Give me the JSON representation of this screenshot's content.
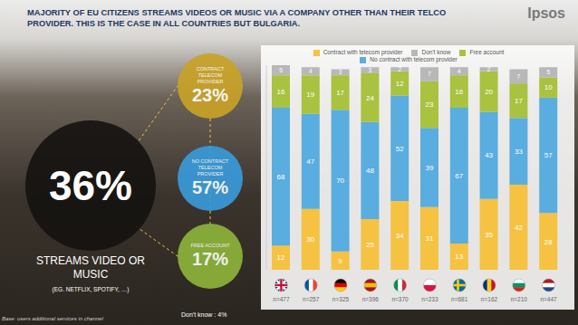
{
  "logo": "Ipsos",
  "base_note": "Base: users additional services in channel",
  "summary": {
    "value": 36,
    "value_label": "36%",
    "label": "STREAMS VIDEO OR MUSIC",
    "sublabel": "(EG. NETFLIX, SPOTIFY, …)",
    "breakdown": [
      {
        "label": "CONTRACT TELECOM PROVIDER",
        "value": 23,
        "value_label": "23%",
        "color": "#c9a227"
      },
      {
        "label": "NO CONTRACT TELECOM PROVIDER",
        "value": 57,
        "value_label": "57%",
        "color": "#3a9ad9"
      },
      {
        "label": "FREE ACCOUNT",
        "value": 17,
        "value_label": "17%",
        "color": "#8db33a"
      }
    ],
    "dont_know": {
      "label": "Don't know :",
      "value": 4,
      "value_label": "4%"
    }
  },
  "chart_data": {
    "type": "bar",
    "title": "MAJORITY OF EU CITIZENS STREAMS VIDEOS OR MUSIC VIA A COMPANY OTHER THAN THEIR TELCO PROVIDER. THIS IS THE CASE IN ALL COUNTRIES BUT BULGARIA.",
    "categories": [
      "n=477",
      "n=257",
      "n=325",
      "n=396",
      "n=370",
      "n=233",
      "n=681",
      "n=162",
      "n=210",
      "n=447"
    ],
    "series": [
      {
        "name": "Contract with telecom provider",
        "color": "#f5c242",
        "values": [
          12,
          30,
          9,
          25,
          34,
          31,
          13,
          35,
          42,
          28
        ]
      },
      {
        "name": "No contract with telecom provider",
        "color": "#5aaddf",
        "values": [
          68,
          47,
          70,
          48,
          52,
          39,
          67,
          43,
          33,
          57
        ]
      },
      {
        "name": "Free account",
        "color": "#a9c23f",
        "values": [
          16,
          19,
          17,
          24,
          12,
          23,
          16,
          20,
          17,
          10
        ]
      },
      {
        "name": "Don't know",
        "color": "#b8b8b8",
        "values": [
          5,
          4,
          3,
          3,
          2,
          7,
          4,
          2,
          7,
          5
        ]
      }
    ],
    "stacked": true,
    "data_labels": true,
    "legend": "top",
    "tick_labels": "x",
    "ylim": [
      0,
      101
    ],
    "yticks": []
  }
}
